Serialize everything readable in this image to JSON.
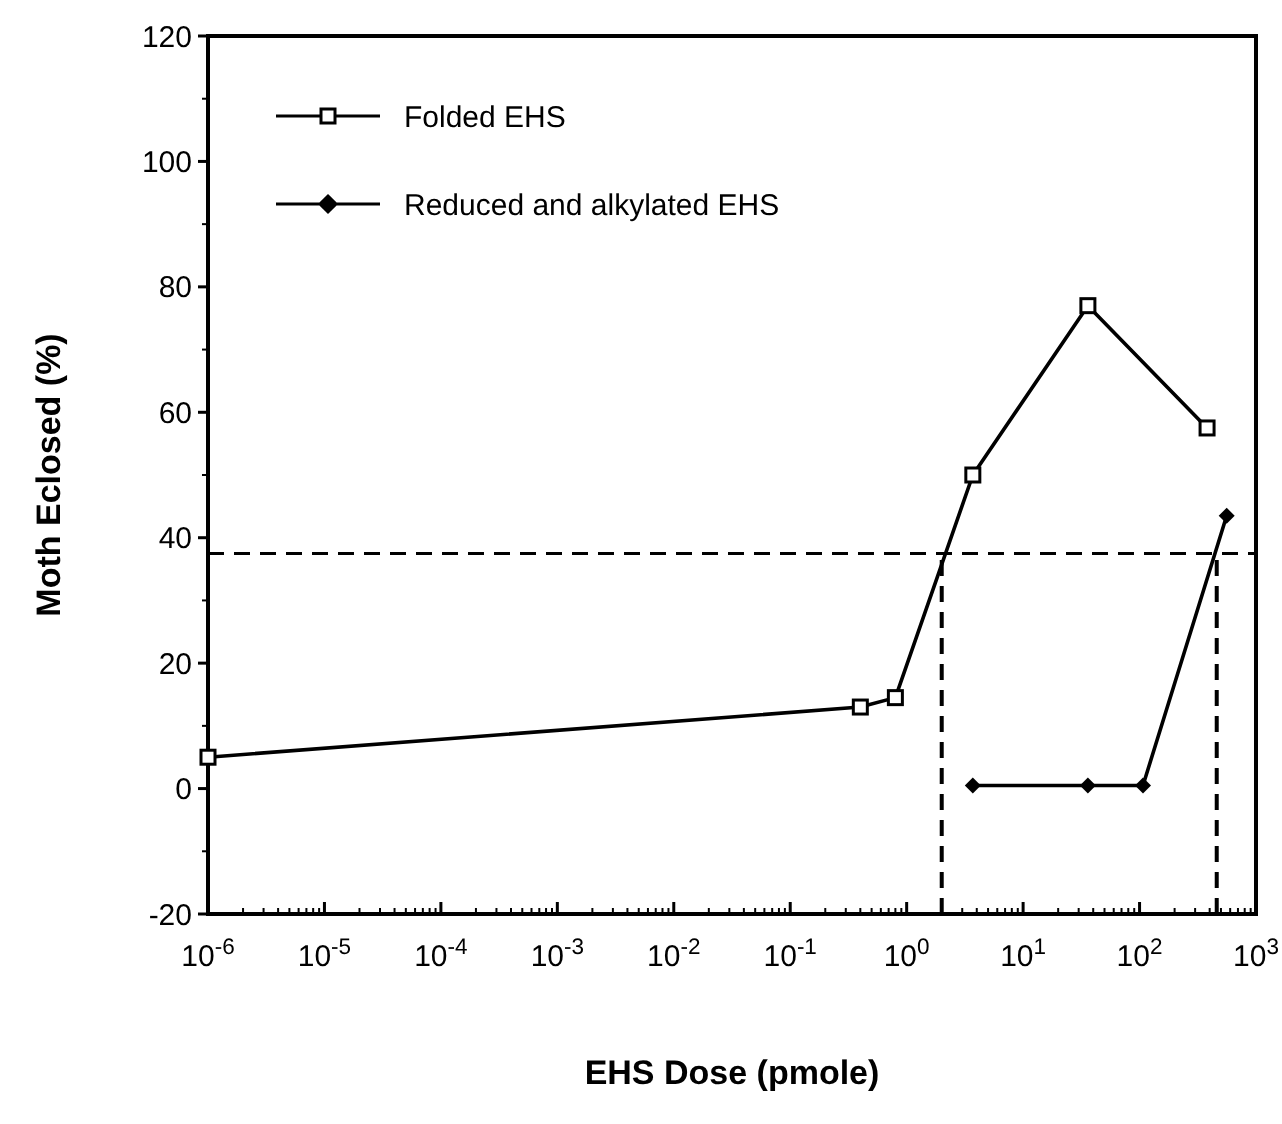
{
  "chart_data": {
    "type": "line",
    "xlabel": "EHS Dose (pmole)",
    "ylabel": "Moth Eclosed (%)",
    "log": "x",
    "xlim": [
      1e-06,
      1000
    ],
    "ylim": [
      -20,
      120
    ],
    "xticks": [
      {
        "value": 1e-06,
        "label": "10$^{-6}$"
      },
      {
        "value": 1e-05,
        "label": "10$^{-5}$"
      },
      {
        "value": 0.0001,
        "label": "10$^{-4}$"
      },
      {
        "value": 0.001,
        "label": "10$^{-3}$"
      },
      {
        "value": 0.01,
        "label": "10$^{-2}$"
      },
      {
        "value": 0.1,
        "label": "10$^{-1}$"
      },
      {
        "value": 1,
        "label": "10$^{0}$"
      },
      {
        "value": 10,
        "label": "10$^{1}$"
      },
      {
        "value": 100,
        "label": "10$^{2}$"
      },
      {
        "value": 1000,
        "label": "10$^{3}$"
      }
    ],
    "yticks": [
      -20,
      0,
      20,
      40,
      60,
      80,
      100,
      120
    ],
    "grid": false,
    "legend": "top left",
    "line_style": "solid",
    "series": [
      {
        "name": "Folded EHS",
        "color": "#000000",
        "marker": "square",
        "x": [
          1e-06,
          0.4,
          0.8,
          3.7,
          36,
          380
        ],
        "values": [
          5,
          13,
          14.5,
          50,
          77,
          57.5
        ]
      },
      {
        "name": "Reduced and alkylated EHS",
        "color": "#000000",
        "marker": "diamond",
        "x": [
          3.7,
          36,
          107,
          560
        ],
        "values": [
          0.5,
          0.5,
          0.5,
          43.5
        ]
      }
    ],
    "ref_lines": [
      {
        "axis": "y",
        "value": 37.5,
        "line_style": "dashed"
      },
      {
        "axis": "x",
        "value": 2.0,
        "line_style": "dashed"
      },
      {
        "axis": "x",
        "value": 460,
        "line_style": "dashed"
      }
    ]
  }
}
